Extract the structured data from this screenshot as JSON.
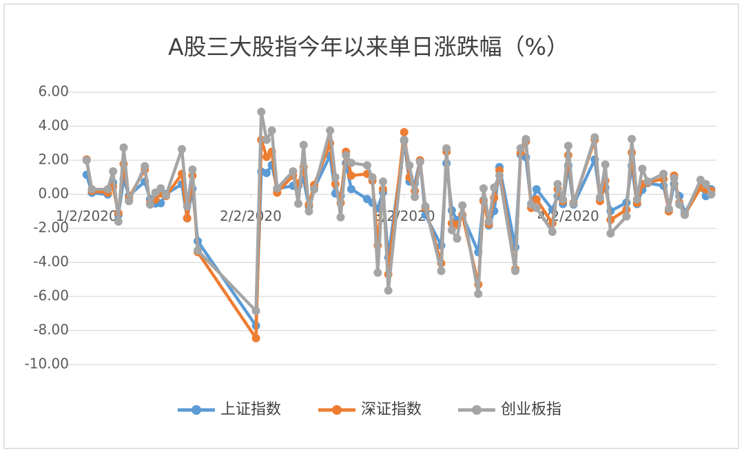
{
  "chart_data": {
    "type": "line",
    "title": "A股三大股指今年以来单日涨跌幅（%）",
    "x": [
      "1/2/2020",
      "1/3/2020",
      "1/6/2020",
      "1/7/2020",
      "1/8/2020",
      "1/9/2020",
      "1/10/2020",
      "1/13/2020",
      "1/14/2020",
      "1/15/2020",
      "1/16/2020",
      "1/17/2020",
      "1/20/2020",
      "1/21/2020",
      "1/22/2020",
      "1/23/2020",
      "2/3/2020",
      "2/4/2020",
      "2/5/2020",
      "2/6/2020",
      "2/7/2020",
      "2/10/2020",
      "2/11/2020",
      "2/12/2020",
      "2/13/2020",
      "2/14/2020",
      "2/17/2020",
      "2/18/2020",
      "2/19/2020",
      "2/20/2020",
      "2/21/2020",
      "2/24/2020",
      "2/25/2020",
      "2/26/2020",
      "2/27/2020",
      "2/28/2020",
      "3/2/2020",
      "3/3/2020",
      "3/4/2020",
      "3/5/2020",
      "3/6/2020",
      "3/9/2020",
      "3/10/2020",
      "3/11/2020",
      "3/12/2020",
      "3/13/2020",
      "3/16/2020",
      "3/17/2020",
      "3/18/2020",
      "3/19/2020",
      "3/20/2020",
      "3/23/2020",
      "3/24/2020",
      "3/25/2020",
      "3/26/2020",
      "3/27/2020",
      "3/30/2020",
      "3/31/2020",
      "4/1/2020",
      "4/2/2020",
      "4/3/2020",
      "4/7/2020",
      "4/8/2020",
      "4/9/2020",
      "4/10/2020",
      "4/13/2020",
      "4/14/2020",
      "4/15/2020",
      "4/16/2020",
      "4/17/2020",
      "4/20/2020",
      "4/21/2020",
      "4/22/2020",
      "4/23/2020",
      "4/24/2020",
      "4/27/2020",
      "4/28/2020",
      "4/29/2020"
    ],
    "series": [
      {
        "name": "上证指数",
        "color": "#5b9bd5",
        "values": [
          1.15,
          0.09,
          -0.01,
          0.69,
          -1.22,
          0.91,
          -0.08,
          0.75,
          -0.28,
          -0.54,
          -0.52,
          0.02,
          0.6,
          -1.41,
          0.33,
          -2.75,
          -7.72,
          1.34,
          1.25,
          1.72,
          0.33,
          0.5,
          0.5,
          0.87,
          -0.71,
          0.35,
          2.28,
          0.05,
          -0.1,
          1.84,
          0.31,
          -0.28,
          -0.5,
          -0.83,
          0.11,
          -3.71,
          3.15,
          0.75,
          0.63,
          1.99,
          -1.21,
          -3.01,
          1.82,
          -0.94,
          -1.52,
          -1.23,
          -3.4,
          -0.34,
          -1.83,
          -0.98,
          1.6,
          -3.11,
          2.34,
          2.17,
          -0.56,
          0.3,
          -0.9,
          -0.1,
          -0.57,
          1.69,
          -0.6,
          2.05,
          -0.19,
          0.4,
          -0.98,
          -0.49,
          1.68,
          -0.57,
          0.27,
          0.66,
          0.5,
          -0.9,
          0.6,
          -0.1,
          -1.06,
          0.44,
          -0.1,
          0.3
        ]
      },
      {
        "name": "深证指数",
        "color": "#ed7d31",
        "values": [
          2.05,
          0.2,
          0.1,
          0.45,
          -1.1,
          1.78,
          -0.2,
          1.45,
          -0.5,
          -0.3,
          0.05,
          -0.1,
          1.2,
          -1.4,
          1.1,
          -3.4,
          -8.45,
          3.2,
          2.2,
          2.5,
          0.1,
          1.1,
          0.6,
          1.6,
          -0.6,
          0.55,
          3.0,
          0.6,
          -0.5,
          2.5,
          1.1,
          1.2,
          0.8,
          -3.0,
          0.3,
          -4.7,
          3.65,
          1.0,
          0.2,
          2.0,
          -0.8,
          -4.05,
          2.5,
          -1.7,
          -1.8,
          -1.2,
          -5.3,
          -0.4,
          -1.75,
          -0.2,
          1.4,
          -4.4,
          2.45,
          3.1,
          -0.8,
          -0.3,
          -1.7,
          0.3,
          -0.4,
          2.3,
          -0.5,
          3.2,
          -0.4,
          0.8,
          -1.5,
          -0.9,
          2.45,
          -0.5,
          0.6,
          0.7,
          0.9,
          -1.0,
          1.1,
          -0.5,
          -1.2,
          0.4,
          0.3,
          0.2
        ]
      },
      {
        "name": "创业板指",
        "color": "#a5a5a5",
        "values": [
          2.0,
          0.3,
          0.3,
          1.35,
          -1.6,
          2.75,
          -0.4,
          1.65,
          -0.6,
          0.1,
          0.35,
          -0.05,
          2.65,
          -0.7,
          1.45,
          -3.3,
          -6.85,
          4.85,
          3.2,
          3.75,
          0.35,
          1.35,
          -0.55,
          2.9,
          -1.0,
          0.3,
          3.75,
          1.0,
          -1.35,
          2.3,
          1.85,
          1.7,
          1.0,
          -4.6,
          0.75,
          -5.65,
          3.2,
          1.7,
          -0.15,
          1.9,
          -0.7,
          -4.5,
          2.7,
          -2.1,
          -2.6,
          -0.65,
          -5.85,
          0.35,
          -1.6,
          0.4,
          1.1,
          -4.5,
          2.7,
          3.25,
          -0.6,
          -0.8,
          -2.2,
          0.6,
          -0.3,
          2.85,
          -0.55,
          3.35,
          -0.2,
          1.75,
          -2.3,
          -1.3,
          3.25,
          -0.3,
          1.5,
          0.75,
          1.2,
          -0.85,
          0.95,
          -0.6,
          -1.2,
          0.85,
          0.6,
          0.0
        ]
      }
    ],
    "xlim": [
      "12/29/2019",
      "4/30/2020"
    ],
    "xticks": [
      "1/2/2020",
      "2/2/2020",
      "3/2/2020",
      "4/2/2020"
    ],
    "ylim": [
      -10,
      6
    ],
    "yticks": [
      {
        "value": -10,
        "label": "-10.00"
      },
      {
        "value": -8,
        "label": "-8.00"
      },
      {
        "value": -6,
        "label": "-6.00"
      },
      {
        "value": -4,
        "label": "-4.00"
      },
      {
        "value": -2,
        "label": "-2.00"
      },
      {
        "value": 0,
        "label": "0.00"
      },
      {
        "value": 2,
        "label": "2.00"
      },
      {
        "value": 4,
        "label": "4.00"
      },
      {
        "value": 6,
        "label": "6.00"
      }
    ],
    "grid": true,
    "legend": "bottom"
  }
}
